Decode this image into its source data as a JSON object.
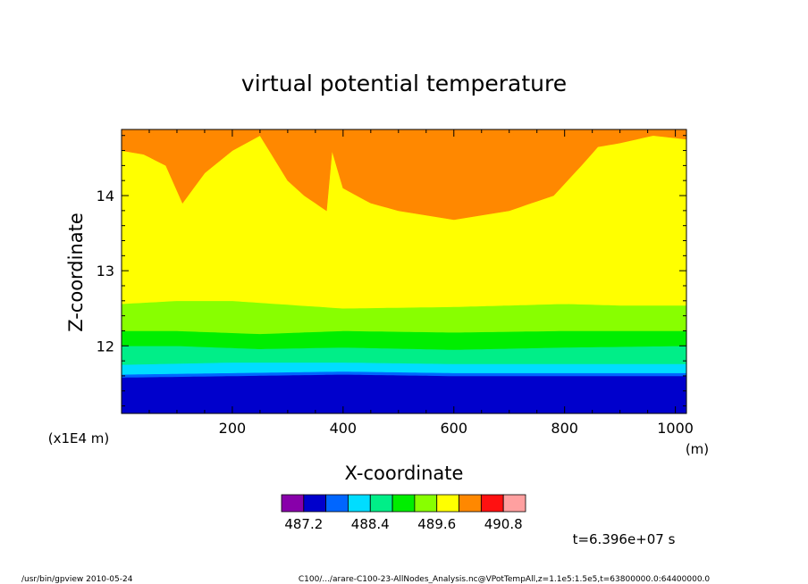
{
  "chart_data": {
    "type": "heatmap",
    "title": "virtual potential temperature",
    "xlabel": "X-coordinate",
    "ylabel": "Z-coordinate",
    "x_unit": "(m)",
    "y_unit": "(x1E4 m)",
    "xlim": [
      0,
      1020
    ],
    "ylim": [
      11.1,
      14.88
    ],
    "x_ticks": [
      200,
      400,
      600,
      800,
      1000
    ],
    "y_ticks": [
      12,
      13,
      14
    ],
    "colorbar": {
      "levels": [
        486.8,
        487.2,
        487.6,
        488.0,
        488.4,
        488.8,
        489.2,
        489.6,
        490.0,
        490.4,
        490.8,
        491.2
      ],
      "labels": [
        "487.2",
        "488.4",
        "489.6",
        "490.8"
      ],
      "colors": [
        "#8800aa",
        "#0000cc",
        "#0066ff",
        "#00ddff",
        "#00ee88",
        "#00ee00",
        "#88ff00",
        "#ffff00",
        "#ff8800",
        "#ff1111",
        "#ffa0a0"
      ]
    },
    "bands": [
      {
        "color": "#0000cc",
        "from_z": 11.1,
        "to_z": [
          [
            0,
            11.58
          ],
          [
            200,
            11.6
          ],
          [
            400,
            11.62
          ],
          [
            600,
            11.6
          ],
          [
            800,
            11.6
          ],
          [
            1020,
            11.6
          ]
        ]
      },
      {
        "color": "#0066ff",
        "from_z": "prev",
        "to_z": [
          [
            0,
            11.62
          ],
          [
            200,
            11.64
          ],
          [
            400,
            11.66
          ],
          [
            600,
            11.64
          ],
          [
            800,
            11.64
          ],
          [
            1020,
            11.64
          ]
        ]
      },
      {
        "color": "#00ddff",
        "from_z": "prev",
        "to_z": [
          [
            0,
            11.75
          ],
          [
            200,
            11.78
          ],
          [
            400,
            11.78
          ],
          [
            600,
            11.76
          ],
          [
            800,
            11.76
          ],
          [
            1020,
            11.76
          ]
        ]
      },
      {
        "color": "#00ee88",
        "from_z": "prev",
        "to_z": [
          [
            0,
            12.0
          ],
          [
            100,
            12.0
          ],
          [
            250,
            11.96
          ],
          [
            400,
            11.98
          ],
          [
            600,
            11.95
          ],
          [
            800,
            11.98
          ],
          [
            1020,
            12.0
          ]
        ]
      },
      {
        "color": "#00ee00",
        "from_z": "prev",
        "to_z": [
          [
            0,
            12.2
          ],
          [
            100,
            12.2
          ],
          [
            250,
            12.16
          ],
          [
            400,
            12.2
          ],
          [
            600,
            12.18
          ],
          [
            800,
            12.2
          ],
          [
            1020,
            12.2
          ]
        ]
      },
      {
        "color": "#88ff00",
        "from_z": "prev",
        "to_z": [
          [
            0,
            12.56
          ],
          [
            100,
            12.6
          ],
          [
            200,
            12.6
          ],
          [
            300,
            12.55
          ],
          [
            400,
            12.5
          ],
          [
            600,
            12.52
          ],
          [
            800,
            12.56
          ],
          [
            900,
            12.54
          ],
          [
            1020,
            12.54
          ]
        ]
      },
      {
        "color": "#ffff00",
        "from_z": "prev",
        "to_z": [
          [
            0,
            14.6
          ],
          [
            40,
            14.55
          ],
          [
            80,
            14.4
          ],
          [
            110,
            13.9
          ],
          [
            150,
            14.3
          ],
          [
            200,
            14.6
          ],
          [
            250,
            14.8
          ],
          [
            300,
            14.2
          ],
          [
            330,
            14.0
          ],
          [
            370,
            13.8
          ],
          [
            380,
            14.6
          ],
          [
            400,
            14.1
          ],
          [
            450,
            13.9
          ],
          [
            500,
            13.8
          ],
          [
            600,
            13.68
          ],
          [
            700,
            13.8
          ],
          [
            780,
            14.0
          ],
          [
            830,
            14.4
          ],
          [
            860,
            14.65
          ],
          [
            900,
            14.7
          ],
          [
            960,
            14.8
          ],
          [
            1020,
            14.75
          ]
        ]
      },
      {
        "color": "#ff8800",
        "from_z": "prev",
        "to_z": 14.88
      }
    ]
  },
  "time_label": "t=6.396e+07 s",
  "footer": {
    "left": "/usr/bin/gpview   2010-05-24",
    "right": "C100/.../arare-C100-23-AllNodes_Analysis.nc@VPotTempAll,z=1.1e5:1.5e5,t=63800000.0:64400000.0"
  }
}
